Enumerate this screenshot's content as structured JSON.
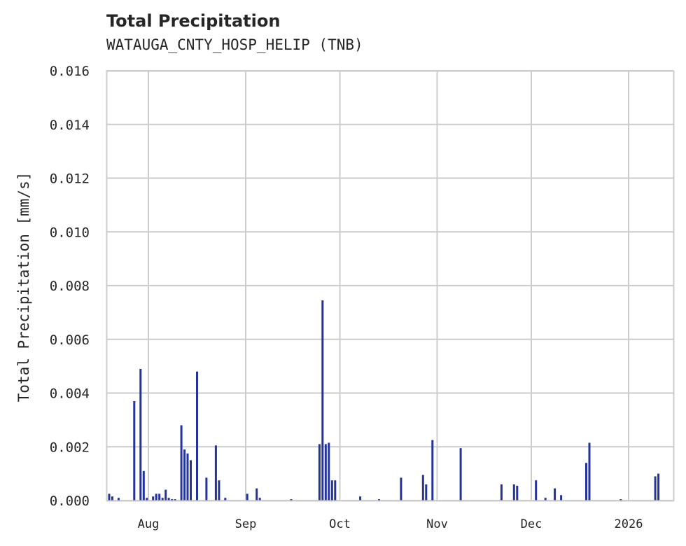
{
  "header": {
    "title": "Total Precipitation",
    "subtitle": "WATAUGA_CNTY_HOSP_HELIP (TNB)"
  },
  "colors": {
    "series": "#24339a",
    "grid": "#cccccc",
    "frame": "#cccccc",
    "text": "#262626"
  },
  "chart_data": {
    "type": "bar",
    "title": "Total Precipitation",
    "subtitle": "WATAUGA_CNTY_HOSP_HELIP (TNB)",
    "xlabel": "",
    "ylabel": "Total Precipitation [mm/s]",
    "ylim": [
      0,
      0.016
    ],
    "yticks": [
      "0.000",
      "0.002",
      "0.004",
      "0.006",
      "0.008",
      "0.010",
      "0.012",
      "0.014",
      "0.016"
    ],
    "xticks": [
      "Aug",
      "Sep",
      "Oct",
      "Nov",
      "Dec",
      "2026"
    ],
    "xlim": [
      "2025-07-18",
      "2026-01-14"
    ],
    "grid": true,
    "legend": null,
    "series": [
      {
        "name": "Total Precipitation",
        "points": [
          {
            "date": "2025-07-19",
            "value": 0.00025
          },
          {
            "date": "2025-07-20",
            "value": 0.00015
          },
          {
            "date": "2025-07-22",
            "value": 0.0001
          },
          {
            "date": "2025-07-27",
            "value": 0.0037
          },
          {
            "date": "2025-07-29",
            "value": 0.0049
          },
          {
            "date": "2025-07-30",
            "value": 0.0011
          },
          {
            "date": "2025-07-31",
            "value": 0.0001
          },
          {
            "date": "2025-08-02",
            "value": 0.00015
          },
          {
            "date": "2025-08-03",
            "value": 0.00025
          },
          {
            "date": "2025-08-04",
            "value": 0.00025
          },
          {
            "date": "2025-08-05",
            "value": 0.0001
          },
          {
            "date": "2025-08-06",
            "value": 0.0004
          },
          {
            "date": "2025-08-07",
            "value": 0.0001
          },
          {
            "date": "2025-08-08",
            "value": 5e-05
          },
          {
            "date": "2025-08-09",
            "value": 5e-05
          },
          {
            "date": "2025-08-11",
            "value": 0.0028
          },
          {
            "date": "2025-08-12",
            "value": 0.0019
          },
          {
            "date": "2025-08-13",
            "value": 0.00175
          },
          {
            "date": "2025-08-14",
            "value": 0.0015
          },
          {
            "date": "2025-08-16",
            "value": 0.0048
          },
          {
            "date": "2025-08-19",
            "value": 0.00085
          },
          {
            "date": "2025-08-22",
            "value": 0.00205
          },
          {
            "date": "2025-08-23",
            "value": 0.00075
          },
          {
            "date": "2025-08-25",
            "value": 0.0001
          },
          {
            "date": "2025-09-01",
            "value": 0.00025
          },
          {
            "date": "2025-09-04",
            "value": 0.00045
          },
          {
            "date": "2025-09-05",
            "value": 0.0001
          },
          {
            "date": "2025-09-15",
            "value": 5e-05
          },
          {
            "date": "2025-09-24",
            "value": 0.0021
          },
          {
            "date": "2025-09-25",
            "value": 0.00745
          },
          {
            "date": "2025-09-26",
            "value": 0.0021
          },
          {
            "date": "2025-09-27",
            "value": 0.00215
          },
          {
            "date": "2025-09-28",
            "value": 0.00075
          },
          {
            "date": "2025-09-29",
            "value": 0.00075
          },
          {
            "date": "2025-10-07",
            "value": 0.00015
          },
          {
            "date": "2025-10-13",
            "value": 5e-05
          },
          {
            "date": "2025-10-20",
            "value": 0.00085
          },
          {
            "date": "2025-10-27",
            "value": 0.00095
          },
          {
            "date": "2025-10-28",
            "value": 0.0006
          },
          {
            "date": "2025-10-30",
            "value": 0.00225
          },
          {
            "date": "2025-11-08",
            "value": 0.00195
          },
          {
            "date": "2025-11-21",
            "value": 0.0006
          },
          {
            "date": "2025-11-25",
            "value": 0.0006
          },
          {
            "date": "2025-11-26",
            "value": 0.00055
          },
          {
            "date": "2025-12-02",
            "value": 0.00075
          },
          {
            "date": "2025-12-05",
            "value": 0.0001
          },
          {
            "date": "2025-12-08",
            "value": 0.00045
          },
          {
            "date": "2025-12-10",
            "value": 0.0002
          },
          {
            "date": "2025-12-18",
            "value": 0.0014
          },
          {
            "date": "2025-12-19",
            "value": 0.00215
          },
          {
            "date": "2025-12-29",
            "value": 5e-05
          },
          {
            "date": "2026-01-09",
            "value": 0.0009
          },
          {
            "date": "2026-01-10",
            "value": 0.001
          }
        ]
      }
    ]
  }
}
